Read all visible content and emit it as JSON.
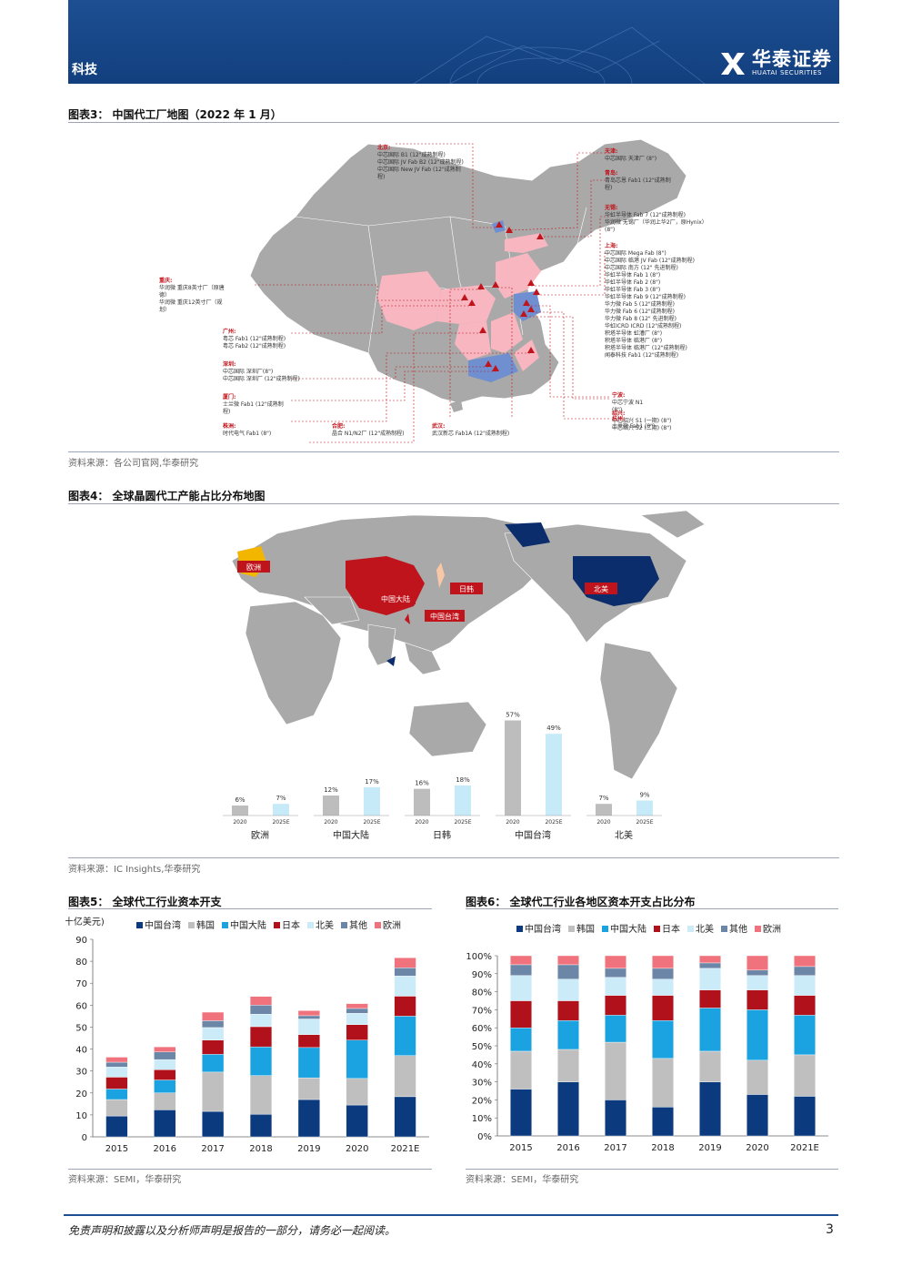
{
  "header": {
    "section": "科技",
    "brand_cn": "华泰证券",
    "brand_en": "HUATAI SECURITIES",
    "color": "#1d4f92"
  },
  "fig3": {
    "title": "图表3：  中国代工厂地图（2022 年 1 月）",
    "source": "资料来源：各公司官网,华泰研究",
    "groups": [
      {
        "city": "北京:",
        "lines": [
          "中芯国际 B1 (12\"成熟制程)",
          "中芯国际 JV Fab B2 (12\"成熟制程)",
          "中芯国际 New JV Fab (12\"成熟制",
          "程)"
        ]
      },
      {
        "city": "重庆:",
        "lines": [
          "华润微 重庆8英寸厂（原唐",
          "德）",
          "华润微 重庆12英寸厂（规",
          "划）"
        ]
      },
      {
        "city": "广州:",
        "lines": [
          "粤芯 Fab1 (12\"成熟制程)",
          "粤芯 Fab2 (12\"成熟制程)"
        ]
      },
      {
        "city": "深圳:",
        "lines": [
          "中芯国际 深圳厂(8\")",
          "中芯国际 深圳厂 (12\"成熟制程)"
        ]
      },
      {
        "city": "厦门:",
        "lines": [
          "士兰微 Fab1 (12\"成熟制",
          "程)"
        ]
      },
      {
        "city": "株洲:",
        "lines": [
          "时代电气 Fab1 (8\")"
        ]
      },
      {
        "city": "合肥:",
        "lines": [
          "晶合 N1/N2厂 (12\"成熟制程)"
        ]
      },
      {
        "city": "武汉:",
        "lines": [
          "武汉新芯 Fab1A (12\"成熟制程)"
        ]
      },
      {
        "city": "天津:",
        "lines": [
          "中芯国际 天津厂 (8\")"
        ]
      },
      {
        "city": "青岛:",
        "lines": [
          "青岛芯恩 Fab1 (12\"成熟制",
          "程)"
        ]
      },
      {
        "city": "无锡:",
        "lines": [
          "华虹半导体 Fab 7 (12\"成熟制程)",
          "华润微 无锡厂（华润上华2厂，原Hynix）",
          "(8\")"
        ]
      },
      {
        "city": "上海:",
        "lines": [
          "中芯国际 Mega Fab (8\")",
          "中芯国际 临港 JV Fab (12\"成熟制程)",
          "中芯国际 南方 (12\" 先进制程)",
          "华虹半导体 Fab 1 (8\")",
          "华虹半导体 Fab 2 (8\")",
          "华虹半导体 Fab 3 (8\")",
          "华虹半导体 Fab 9 (12\"成熟制程)",
          "华力微 Fab 5 (12\"成熟制程)",
          "华力微 Fab 6 (12\"成熟制程)",
          "华力微 Fab 8 (12\" 先进制程)",
          "华虹ICRD ICRD (12\"成熟制程)",
          "积塔半导体 虹漕厂 (8\")",
          "积塔半导体 临港厂 (8\")",
          "积塔半导体 临港厂 (12\"成熟制程)",
          "闻泰科技 Fab1 (12\"成熟制程)"
        ]
      },
      {
        "city": "宁波:",
        "lines": [
          "中芯宁波 N1",
          "(8\")"
        ]
      },
      {
        "city": "绍兴:",
        "lines": [
          "中芯绍兴 S1 (一期) (8\")",
          "中芯绍兴 S2 (二期) (8\")"
        ]
      },
      {
        "city": "杭州:",
        "lines": [
          "士兰微 Fab1 (8\")"
        ]
      }
    ]
  },
  "fig4": {
    "title": "图表4：  全球晶圆代工产能占比分布地图",
    "source": "资料来源：IC Insights,华泰研究",
    "map_labels": {
      "europe": "欧洲",
      "china": "中国大陆",
      "jk": "日韩",
      "taiwan": "中国台湾",
      "na": "北美"
    },
    "chart_data": {
      "type": "bar",
      "groups": [
        "欧洲",
        "中国大陆",
        "日韩",
        "中国台湾",
        "北美"
      ],
      "categories": [
        "2020",
        "2025E"
      ],
      "values_2020": [
        6,
        12,
        16,
        57,
        7
      ],
      "values_2025E": [
        7,
        17,
        18,
        49,
        9
      ],
      "labels_2020": [
        "6%",
        "12%",
        "16%",
        "57%",
        "7%"
      ],
      "labels_2025E": [
        "7%",
        "17%",
        "18%",
        "49%",
        "9%"
      ],
      "colors": {
        "2020": "#bdbdbd",
        "2025E": "#c6eaf8"
      }
    }
  },
  "fig5": {
    "title": "图表5：  全球代工行业资本开支",
    "source": "资料来源：SEMI，华泰研究",
    "chart_data": {
      "type": "bar",
      "stacked": true,
      "ylabel": "(十亿美元)",
      "ylim": [
        0,
        90
      ],
      "yticks": [
        "0",
        "10",
        "20",
        "30",
        "40",
        "50",
        "60",
        "70",
        "80",
        "90"
      ],
      "categories": [
        "2015",
        "2016",
        "2017",
        "2018",
        "2019",
        "2020",
        "2021E"
      ],
      "legend_position": "top",
      "series": [
        {
          "name": "中国台湾",
          "color": "#0b3a7e",
          "values": [
            9.5,
            12.3,
            11.6,
            10.3,
            17.0,
            14.5,
            18.3
          ]
        },
        {
          "name": "韩国",
          "color": "#bfbfbf",
          "values": [
            7.5,
            7.7,
            17.9,
            17.6,
            9.9,
            12.1,
            18.7
          ]
        },
        {
          "name": "中国大陆",
          "color": "#1aa3e0",
          "values": [
            4.8,
            5.9,
            8.1,
            13.1,
            13.8,
            17.5,
            18.0
          ]
        },
        {
          "name": "日本",
          "color": "#b1111b",
          "values": [
            5.4,
            4.7,
            6.5,
            9.2,
            5.9,
            7.0,
            9.1
          ]
        },
        {
          "name": "北美",
          "color": "#ccebf8",
          "values": [
            4.6,
            4.6,
            5.7,
            5.7,
            7.1,
            5.2,
            9.2
          ]
        },
        {
          "name": "其他",
          "color": "#6c86a8",
          "values": [
            2.2,
            3.5,
            3.1,
            4.1,
            1.5,
            2.2,
            3.7
          ]
        },
        {
          "name": "欧洲",
          "color": "#f0727c",
          "values": [
            2.3,
            2.3,
            3.9,
            4.0,
            2.3,
            2.2,
            4.6
          ]
        }
      ]
    }
  },
  "fig6": {
    "title": "图表6：  全球代工行业各地区资本开支占比分布",
    "source": "资料来源：SEMI，华泰研究",
    "chart_data": {
      "type": "bar",
      "stacked": true,
      "ylim": [
        0,
        100
      ],
      "yticks": [
        "0%",
        "10%",
        "20%",
        "30%",
        "40%",
        "50%",
        "60%",
        "70%",
        "80%",
        "90%",
        "100%"
      ],
      "categories": [
        "2015",
        "2016",
        "2017",
        "2018",
        "2019",
        "2020",
        "2021E"
      ],
      "legend_position": "top",
      "series": [
        {
          "name": "中国台湾",
          "color": "#0b3a7e",
          "values": [
            26,
            30,
            20,
            16,
            30,
            23,
            22
          ]
        },
        {
          "name": "韩国",
          "color": "#bfbfbf",
          "values": [
            21,
            18,
            32,
            27,
            17,
            19,
            23
          ]
        },
        {
          "name": "中国大陆",
          "color": "#1aa3e0",
          "values": [
            13,
            16,
            15,
            21,
            24,
            28,
            22
          ]
        },
        {
          "name": "日本",
          "color": "#b1111b",
          "values": [
            15,
            11,
            11,
            14,
            10,
            11,
            11
          ]
        },
        {
          "name": "北美",
          "color": "#ccebf8",
          "values": [
            14,
            12,
            10,
            9,
            12,
            8,
            11
          ]
        },
        {
          "name": "其他",
          "color": "#6c86a8",
          "values": [
            6,
            8,
            5,
            6,
            3,
            3,
            5
          ]
        },
        {
          "name": "欧洲",
          "color": "#f0727c",
          "values": [
            5,
            5,
            7,
            7,
            4,
            8,
            6
          ]
        }
      ]
    }
  },
  "footer": {
    "disclaimer": "免责声明和披露以及分析师声明是报告的一部分，请务必一起阅读。",
    "page": "3"
  }
}
